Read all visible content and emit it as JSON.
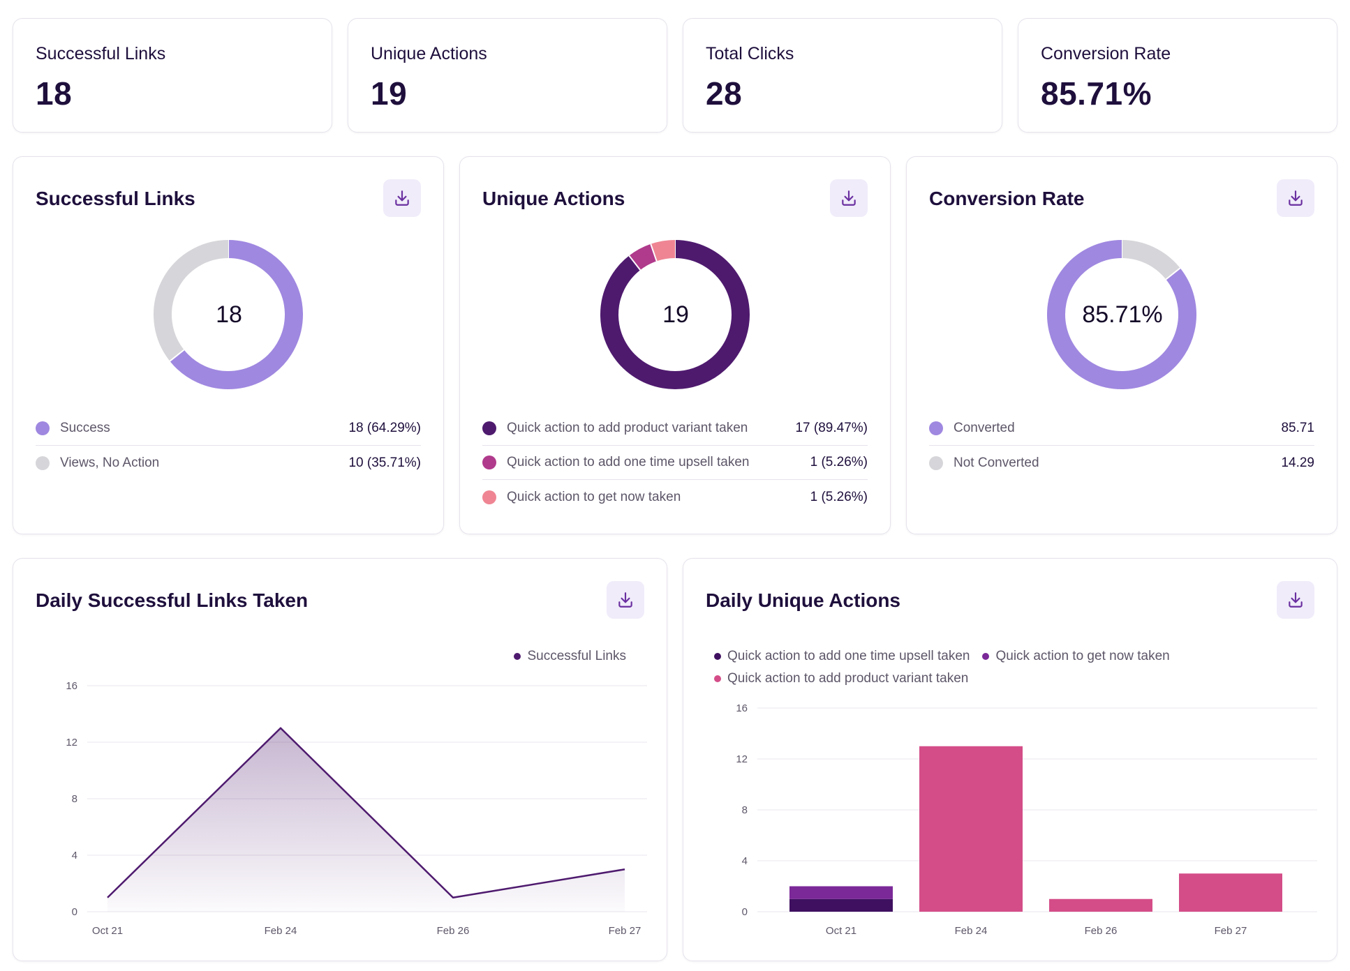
{
  "stats": [
    {
      "label": "Successful Links",
      "value": "18"
    },
    {
      "label": "Unique Actions",
      "value": "19"
    },
    {
      "label": "Total Clicks",
      "value": "28"
    },
    {
      "label": "Conversion Rate",
      "value": "85.71%"
    }
  ],
  "icons": {
    "download": "download-icon"
  },
  "colors": {
    "light_purple": "#9f88e0",
    "gray": "#d6d6da",
    "dark_purple": "#4e1a6e",
    "magenta": "#b03a8c",
    "pink": "#ef8593",
    "bar_dark": "#3f1060",
    "bar_mid": "#7b2898",
    "bar_pink": "#d44d88"
  },
  "donuts": {
    "successful_links": {
      "title": "Successful Links",
      "center": "18",
      "legend": [
        {
          "label": "Success",
          "value": "18 (64.29%)",
          "color": "#9f88e0"
        },
        {
          "label": "Views, No Action",
          "value": "10 (35.71%)",
          "color": "#d6d6da"
        }
      ],
      "slices": [
        {
          "name": "Success",
          "value": 18,
          "color": "#9f88e0"
        },
        {
          "name": "Views, No Action",
          "value": 10,
          "color": "#d6d6da"
        }
      ]
    },
    "unique_actions": {
      "title": "Unique Actions",
      "center": "19",
      "legend": [
        {
          "label": "Quick action to add product variant taken",
          "value": "17 (89.47%)",
          "color": "#4e1a6e"
        },
        {
          "label": "Quick action to add one time upsell taken",
          "value": "1 (5.26%)",
          "color": "#b03a8c"
        },
        {
          "label": "Quick action to get now taken",
          "value": "1 (5.26%)",
          "color": "#ef8593"
        }
      ],
      "slices": [
        {
          "name": "Quick action to add product variant taken",
          "value": 17,
          "color": "#4e1a6e"
        },
        {
          "name": "Quick action to add one time upsell taken",
          "value": 1,
          "color": "#b03a8c"
        },
        {
          "name": "Quick action to get now taken",
          "value": 1,
          "color": "#ef8593"
        }
      ]
    },
    "conversion_rate": {
      "title": "Conversion Rate",
      "center": "85.71%",
      "legend": [
        {
          "label": "Converted",
          "value": "85.71",
          "color": "#9f88e0"
        },
        {
          "label": "Not Converted",
          "value": "14.29",
          "color": "#d6d6da"
        }
      ],
      "slices": [
        {
          "name": "Not Converted",
          "value": 14.29,
          "color": "#d6d6da"
        },
        {
          "name": "Converted",
          "value": 85.71,
          "color": "#9f88e0"
        }
      ]
    }
  },
  "line_chart": {
    "title": "Daily Successful Links Taken",
    "legend": "Successful Links",
    "legend_color": "#4e1a6e"
  },
  "bar_chart": {
    "title": "Daily Unique Actions",
    "legend": [
      {
        "label": "Quick action to add one time upsell taken",
        "color": "#3f1060"
      },
      {
        "label": "Quick action to get now taken",
        "color": "#7b2898"
      },
      {
        "label": "Quick action to add product variant taken",
        "color": "#d44d88"
      }
    ]
  },
  "chart_data": [
    {
      "type": "line",
      "title": "Daily Successful Links Taken",
      "categories": [
        "Oct 21",
        "Feb 24",
        "Feb 26",
        "Feb 27"
      ],
      "series": [
        {
          "name": "Successful Links",
          "values": [
            1,
            13,
            1,
            3
          ]
        }
      ],
      "yticks": [
        0,
        4,
        8,
        12,
        16
      ],
      "ylim": [
        0,
        16
      ]
    },
    {
      "type": "bar",
      "title": "Daily Unique Actions",
      "stacked": true,
      "categories": [
        "Oct 21",
        "Feb 24",
        "Feb 26",
        "Feb 27"
      ],
      "series": [
        {
          "name": "Quick action to add one time upsell taken",
          "values": [
            1,
            0,
            0,
            0
          ],
          "color": "#3f1060"
        },
        {
          "name": "Quick action to get now taken",
          "values": [
            1,
            0,
            0,
            0
          ],
          "color": "#7b2898"
        },
        {
          "name": "Quick action to add product variant taken",
          "values": [
            0,
            13,
            1,
            3
          ],
          "color": "#d44d88"
        }
      ],
      "yticks": [
        0,
        4,
        8,
        12,
        16
      ],
      "ylim": [
        0,
        16
      ]
    }
  ]
}
